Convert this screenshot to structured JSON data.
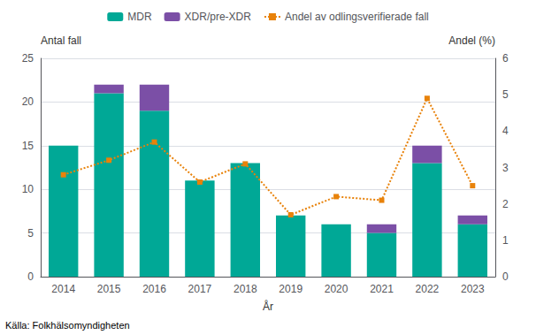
{
  "chart_data": {
    "type": "bar",
    "stacked": true,
    "grid": true,
    "legend": "top",
    "xlabel": "År",
    "ylabel": "Antal fall",
    "y2label": "Andel (%)",
    "annotations": [
      "Källa: Folkhälsomyndigheten"
    ],
    "categories": [
      "2014",
      "2015",
      "2016",
      "2017",
      "2018",
      "2019",
      "2020",
      "2021",
      "2022",
      "2023"
    ],
    "series": [
      {
        "name": "MDR",
        "type": "bar",
        "color": "#00a896",
        "values": [
          15,
          21,
          19,
          11,
          13,
          7,
          6,
          5,
          13,
          6
        ]
      },
      {
        "name": "XDR/pre-XDR",
        "type": "bar",
        "color": "#7b4fa6",
        "values": [
          0,
          1,
          3,
          0,
          0,
          0,
          0,
          1,
          2,
          1
        ]
      },
      {
        "name": "Andel av odlingsverifierade fall",
        "type": "line",
        "axis": "y2",
        "color": "#e8820a",
        "marker": "square",
        "line_style": "dotted",
        "values": [
          2.8,
          3.2,
          3.7,
          2.6,
          3.1,
          1.7,
          2.2,
          2.1,
          4.9,
          2.5
        ]
      }
    ],
    "ylim": [
      0,
      25
    ],
    "yticks": [
      0,
      5,
      10,
      15,
      20,
      25
    ],
    "y2lim": [
      0,
      6
    ],
    "y2ticks": [
      0,
      1,
      2,
      3,
      4,
      5,
      6
    ]
  }
}
